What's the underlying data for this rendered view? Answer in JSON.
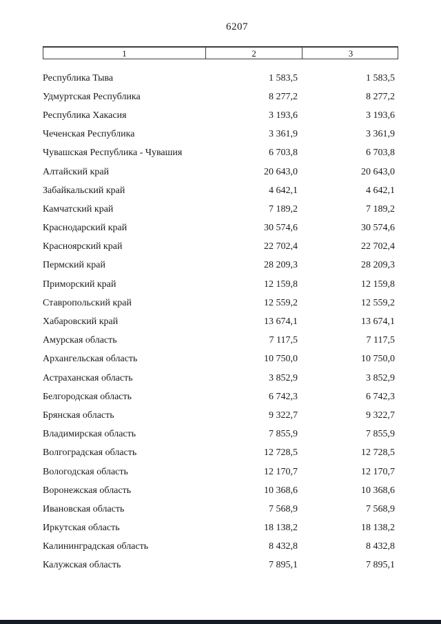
{
  "page": {
    "number": "6207"
  },
  "table": {
    "header": [
      "1",
      "2",
      "3"
    ],
    "rows": [
      {
        "name": "Республика Тыва",
        "v2": "1 583,5",
        "v3": "1 583,5"
      },
      {
        "name": "Удмуртская Республика",
        "v2": "8 277,2",
        "v3": "8 277,2"
      },
      {
        "name": "Республика Хакасия",
        "v2": "3 193,6",
        "v3": "3 193,6"
      },
      {
        "name": "Чеченская Республика",
        "v2": "3 361,9",
        "v3": "3 361,9"
      },
      {
        "name": "Чувашская Республика - Чувашия",
        "v2": "6 703,8",
        "v3": "6 703,8"
      },
      {
        "name": "Алтайский край",
        "v2": "20 643,0",
        "v3": "20 643,0"
      },
      {
        "name": "Забайкальский край",
        "v2": "4 642,1",
        "v3": "4 642,1"
      },
      {
        "name": "Камчатский край",
        "v2": "7 189,2",
        "v3": "7 189,2"
      },
      {
        "name": "Краснодарский край",
        "v2": "30 574,6",
        "v3": "30 574,6"
      },
      {
        "name": "Красноярский край",
        "v2": "22 702,4",
        "v3": "22 702,4"
      },
      {
        "name": "Пермский край",
        "v2": "28 209,3",
        "v3": "28 209,3"
      },
      {
        "name": "Приморский край",
        "v2": "12 159,8",
        "v3": "12 159,8"
      },
      {
        "name": "Ставропольский край",
        "v2": "12 559,2",
        "v3": "12 559,2"
      },
      {
        "name": "Хабаровский край",
        "v2": "13 674,1",
        "v3": "13 674,1"
      },
      {
        "name": "Амурская область",
        "v2": "7 117,5",
        "v3": "7 117,5"
      },
      {
        "name": "Архангельская область",
        "v2": "10 750,0",
        "v3": "10 750,0"
      },
      {
        "name": "Астраханская область",
        "v2": "3 852,9",
        "v3": "3 852,9"
      },
      {
        "name": "Белгородская область",
        "v2": "6 742,3",
        "v3": "6 742,3"
      },
      {
        "name": "Брянская область",
        "v2": "9 322,7",
        "v3": "9 322,7"
      },
      {
        "name": "Владимирская область",
        "v2": "7 855,9",
        "v3": "7 855,9"
      },
      {
        "name": "Волгоградская область",
        "v2": "12 728,5",
        "v3": "12 728,5"
      },
      {
        "name": "Вологодская область",
        "v2": "12 170,7",
        "v3": "12 170,7"
      },
      {
        "name": "Воронежская область",
        "v2": "10 368,6",
        "v3": "10 368,6"
      },
      {
        "name": "Ивановская область",
        "v2": "7 568,9",
        "v3": "7 568,9"
      },
      {
        "name": "Иркутская область",
        "v2": "18 138,2",
        "v3": "18 138,2"
      },
      {
        "name": "Калининградская область",
        "v2": "8 432,8",
        "v3": "8 432,8"
      },
      {
        "name": "Калужская область",
        "v2": "7 895,1",
        "v3": "7 895,1"
      }
    ]
  },
  "colors": {
    "page_background": "#ffffff",
    "text": "#1a1a1a",
    "table_border": "#3c3c3c",
    "bottom_bar": "#151a26"
  }
}
